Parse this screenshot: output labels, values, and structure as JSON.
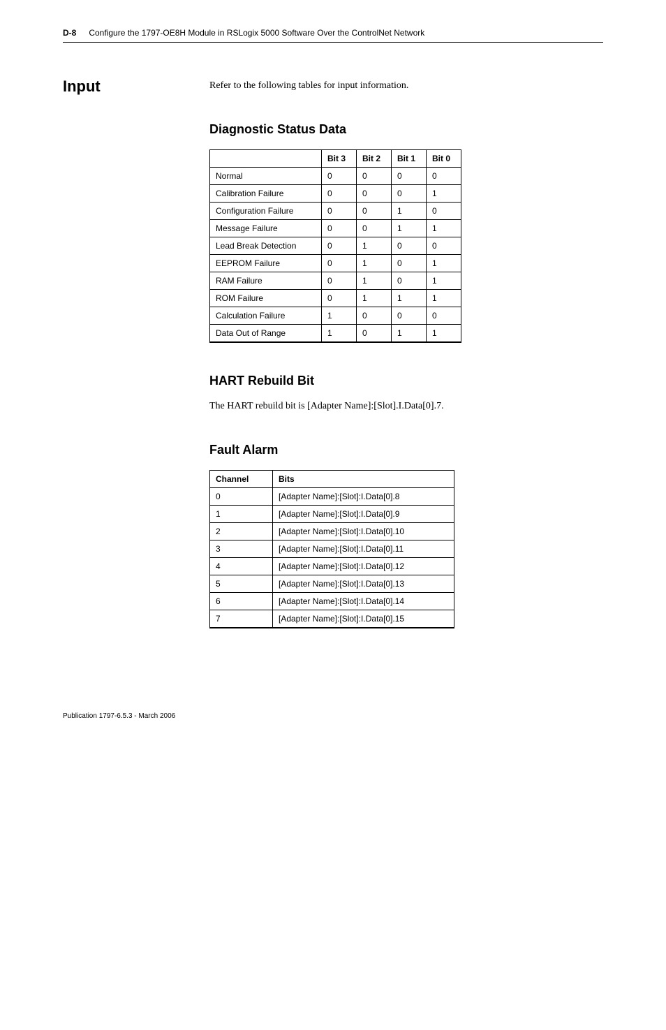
{
  "header": {
    "page_number": "D-8",
    "chapter_title": "Configure the 1797-OE8H Module in RSLogix 5000 Software Over the ControlNet Network"
  },
  "section": {
    "side_heading": "Input",
    "lead_text": "Refer to the following tables for input information."
  },
  "diag": {
    "title": "Diagnostic Status Data",
    "columns": [
      "",
      "Bit 3",
      "Bit 2",
      "Bit 1",
      "Bit 0"
    ],
    "rows": [
      {
        "label": "Normal",
        "b3": "0",
        "b2": "0",
        "b1": "0",
        "b0": "0"
      },
      {
        "label": "Calibration Failure",
        "b3": "0",
        "b2": "0",
        "b1": "0",
        "b0": "1"
      },
      {
        "label": "Configuration Failure",
        "b3": "0",
        "b2": "0",
        "b1": "1",
        "b0": "0"
      },
      {
        "label": "Message Failure",
        "b3": "0",
        "b2": "0",
        "b1": "1",
        "b0": "1"
      },
      {
        "label": "Lead Break Detection",
        "b3": "0",
        "b2": "1",
        "b1": "0",
        "b0": "0"
      },
      {
        "label": "EEPROM Failure",
        "b3": "0",
        "b2": "1",
        "b1": "0",
        "b0": "1"
      },
      {
        "label": "RAM Failure",
        "b3": "0",
        "b2": "1",
        "b1": "0",
        "b0": "1"
      },
      {
        "label": "ROM Failure",
        "b3": "0",
        "b2": "1",
        "b1": "1",
        "b0": "1"
      },
      {
        "label": "Calculation Failure",
        "b3": "1",
        "b2": "0",
        "b1": "0",
        "b0": "0"
      },
      {
        "label": "Data Out of Range",
        "b3": "1",
        "b2": "0",
        "b1": "1",
        "b0": "1"
      }
    ]
  },
  "rebuild": {
    "title": "HART Rebuild Bit",
    "text": "The HART rebuild bit is [Adapter Name]:[Slot].I.Data[0].7."
  },
  "fault": {
    "title": "Fault Alarm",
    "columns": [
      "Channel",
      "Bits"
    ],
    "rows": [
      {
        "ch": "0",
        "bits": "[Adapter Name]:[Slot]:I.Data[0].8"
      },
      {
        "ch": "1",
        "bits": "[Adapter Name]:[Slot]:I.Data[0].9"
      },
      {
        "ch": "2",
        "bits": "[Adapter Name]:[Slot]:I.Data[0].10"
      },
      {
        "ch": "3",
        "bits": "[Adapter Name]:[Slot]:I.Data[0].11"
      },
      {
        "ch": "4",
        "bits": "[Adapter Name]:[Slot]:I.Data[0].12"
      },
      {
        "ch": "5",
        "bits": "[Adapter Name]:[Slot]:I.Data[0].13"
      },
      {
        "ch": "6",
        "bits": "[Adapter Name]:[Slot]:I.Data[0].14"
      },
      {
        "ch": "7",
        "bits": "[Adapter Name]:[Slot]:I.Data[0].15"
      }
    ]
  },
  "footer": {
    "pub": "Publication 1797-6.5.3 - March 2006"
  }
}
